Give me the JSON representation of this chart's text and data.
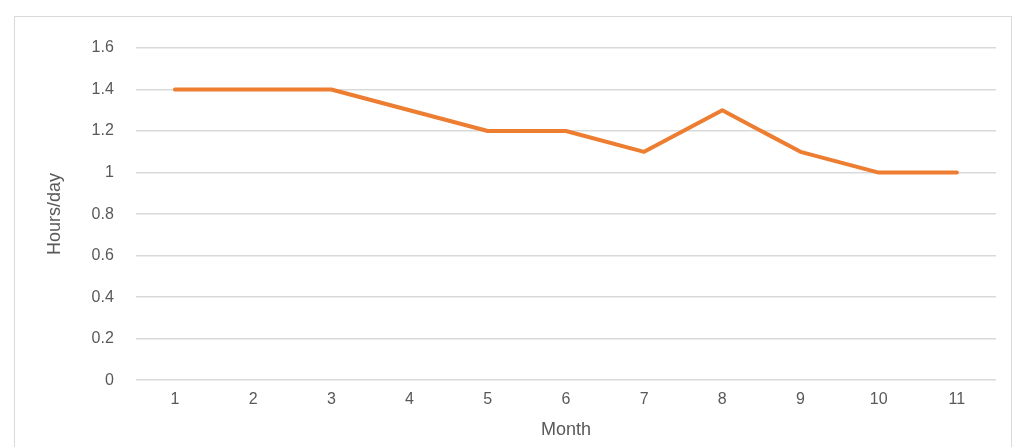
{
  "chart_data": {
    "type": "line",
    "xlabel": "Month",
    "ylabel": "Hours/day",
    "categories": [
      "1",
      "2",
      "3",
      "4",
      "5",
      "6",
      "7",
      "8",
      "9",
      "10",
      "11"
    ],
    "series": [
      {
        "color": "#ed7d31",
        "values": [
          1.4,
          1.4,
          1.4,
          1.3,
          1.2,
          1.2,
          1.1,
          1.3,
          1.1,
          1.0,
          1.0
        ]
      }
    ],
    "ylim": [
      0,
      1.6
    ],
    "yticks": [
      0,
      0.2,
      0.4,
      0.6,
      0.8,
      1,
      1.2,
      1.4,
      1.6
    ],
    "grid": "y",
    "legend": false,
    "marker": "none",
    "line_style": "solid"
  }
}
